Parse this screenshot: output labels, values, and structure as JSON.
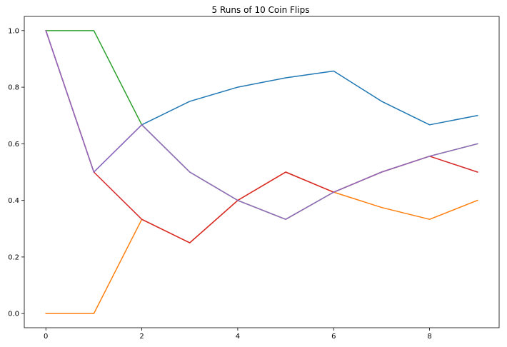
{
  "chart_data": {
    "type": "line",
    "title": "5 Runs of 10 Coin Flips",
    "xlabel": "",
    "ylabel": "",
    "x": [
      0,
      1,
      2,
      3,
      4,
      5,
      6,
      7,
      8,
      9
    ],
    "xlim": [
      -0.45,
      9.45
    ],
    "ylim": [
      -0.05,
      1.05
    ],
    "x_ticks": [
      0,
      2,
      4,
      6,
      8
    ],
    "x_tick_labels": [
      "0",
      "2",
      "4",
      "6",
      "8"
    ],
    "y_ticks": [
      0.0,
      0.2,
      0.4,
      0.6,
      0.8,
      1.0
    ],
    "y_tick_labels": [
      "0.0",
      "0.2",
      "0.4",
      "0.6",
      "0.8",
      "1.0"
    ],
    "grid": false,
    "series": [
      {
        "color": "#1f77b4",
        "values": [
          1.0,
          0.5,
          0.667,
          0.75,
          0.8,
          0.833,
          0.857,
          0.75,
          0.667,
          0.7
        ]
      },
      {
        "color": "#ff7f0e",
        "values": [
          0.0,
          0.0,
          0.333,
          0.25,
          0.4,
          0.5,
          0.429,
          0.375,
          0.333,
          0.4
        ]
      },
      {
        "color": "#2ca02c",
        "values": [
          1.0,
          1.0,
          0.667,
          0.5,
          0.4,
          0.333,
          0.429,
          0.5,
          0.556,
          0.6
        ]
      },
      {
        "color": "#d62728",
        "values": [
          1.0,
          0.5,
          0.333,
          0.25,
          0.4,
          0.5,
          0.429,
          0.5,
          0.556,
          0.5
        ]
      },
      {
        "color": "#9467bd",
        "values": [
          1.0,
          0.5,
          0.667,
          0.5,
          0.4,
          0.333,
          0.429,
          0.5,
          0.556,
          0.6
        ]
      }
    ]
  }
}
